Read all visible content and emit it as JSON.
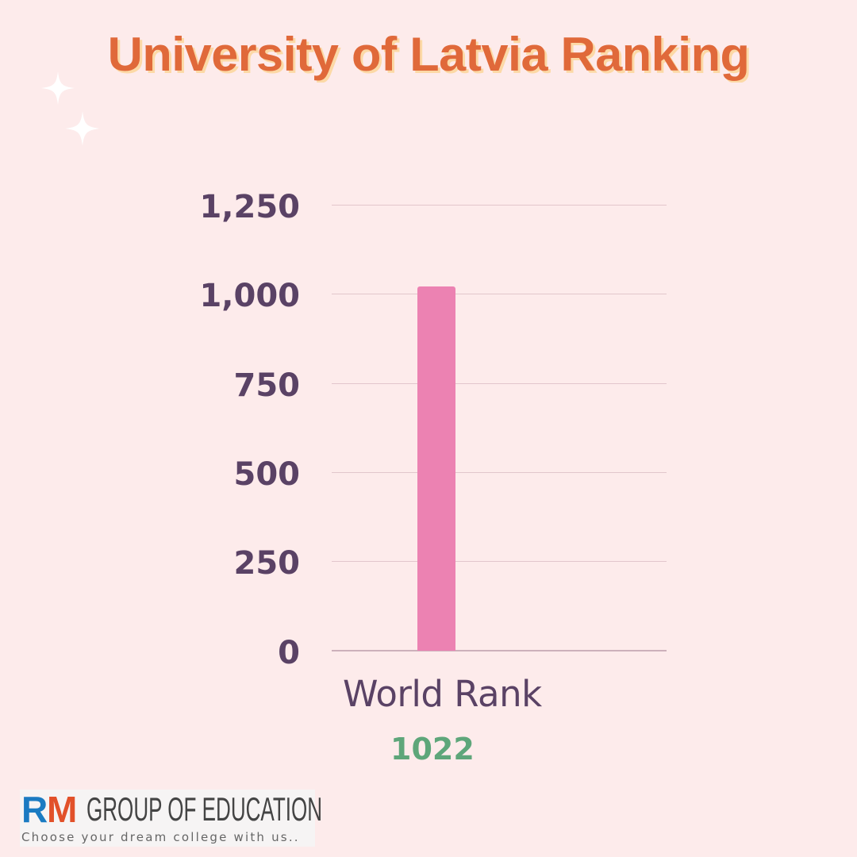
{
  "title": "University of Latvia Ranking",
  "decorations": {
    "sparkles": [
      "sparkle-icon",
      "sparkle-icon"
    ],
    "colors": {
      "background": "#fdebeb",
      "title": "#e0693a",
      "title_shadow": "#fcd9a6",
      "sparkle": "#ffffff"
    }
  },
  "chart_data": {
    "type": "bar",
    "title": "University of Latvia Ranking",
    "categories": [
      "World Rank"
    ],
    "values": [
      1022
    ],
    "series": [
      {
        "name": "World Rank",
        "values": [
          1022
        ],
        "color": "#ec82b2"
      }
    ],
    "xlabel": "",
    "ylabel": "",
    "ylim": [
      0,
      1250
    ],
    "yticks": [
      0,
      250,
      500,
      750,
      1000,
      1250
    ],
    "ytick_labels": [
      "0",
      "250",
      "500",
      "750",
      "1,000",
      "1,250"
    ],
    "grid": true,
    "legend": "none",
    "annotations": [
      "1022"
    ]
  },
  "axis": {
    "yticks": [
      {
        "label": "1,250",
        "value": 1250
      },
      {
        "label": "1,000",
        "value": 1000
      },
      {
        "label": "750",
        "value": 750
      },
      {
        "label": "500",
        "value": 500
      },
      {
        "label": "250",
        "value": 250
      },
      {
        "label": "0",
        "value": 0
      }
    ],
    "category_label": "World Rank"
  },
  "value_label": "1022",
  "logo": {
    "letter_r": "R",
    "letter_m": "M",
    "name": "GROUP OF EDUCATION",
    "tagline": "Choose your dream college with us.."
  }
}
